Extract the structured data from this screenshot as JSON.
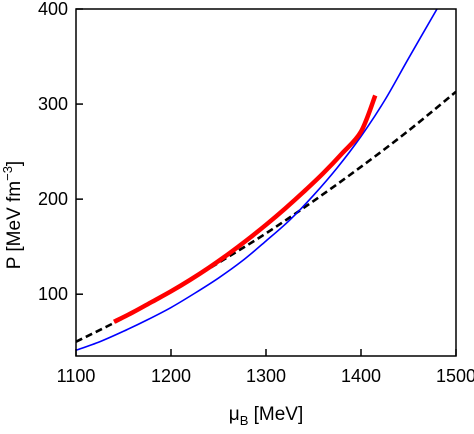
{
  "chart_data": {
    "type": "line",
    "xlabel": "μB [MeV]",
    "xlabel_main": "μ",
    "xlabel_sub": "B",
    "xlabel_unit": " [MeV]",
    "ylabel": "P [MeV fm−3]",
    "ylabel_main": "P [MeV fm",
    "ylabel_sup": "−3",
    "ylabel_end": "]",
    "xlim": [
      1100,
      1500
    ],
    "ylim": [
      35,
      400
    ],
    "xticks": [
      1100,
      1200,
      1300,
      1400,
      1500
    ],
    "yticks": [
      100,
      200,
      300,
      400
    ],
    "grid": false,
    "series": [
      {
        "style": "solid",
        "color": "#0000ff",
        "x": [
          1100,
          1125,
          1150,
          1175,
          1200,
          1225,
          1250,
          1275,
          1300,
          1325,
          1350,
          1375,
          1400,
          1425,
          1450,
          1480
        ],
        "y": [
          41,
          50,
          61,
          73,
          86,
          101,
          117,
          135,
          156,
          178,
          204,
          233,
          266,
          304,
          348,
          400
        ]
      },
      {
        "style": "thick",
        "color": "#ff0000",
        "x": [
          1140,
          1160,
          1180,
          1200,
          1220,
          1240,
          1260,
          1280,
          1300,
          1320,
          1340,
          1360,
          1380,
          1400,
          1415
        ],
        "y": [
          71,
          81,
          92,
          103,
          115,
          128,
          142,
          157,
          173,
          190,
          208,
          227,
          248,
          271,
          309
        ]
      },
      {
        "style": "dashed",
        "color": "#000000",
        "x": [
          1100,
          1150,
          1200,
          1250,
          1300,
          1350,
          1400,
          1450,
          1500
        ],
        "y": [
          50,
          75,
          103,
          133,
          164,
          198,
          234,
          272,
          313
        ]
      }
    ]
  }
}
